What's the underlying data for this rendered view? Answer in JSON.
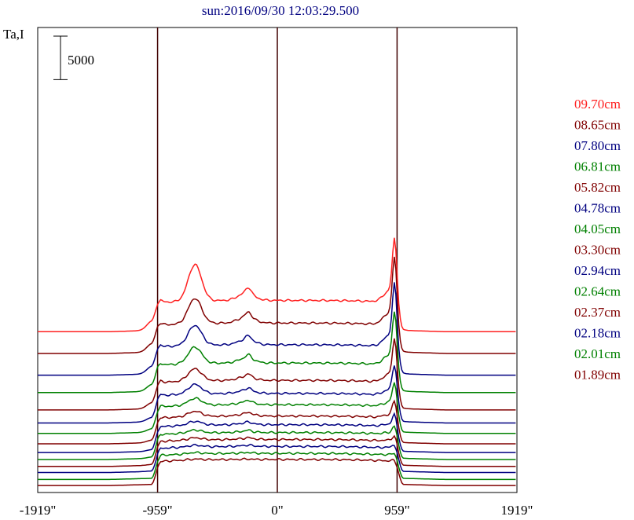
{
  "chart_data": {
    "type": "line",
    "title": "sun:2016/09/30 12:03:29.500",
    "ylabel": "Ta,I",
    "xlabel": "",
    "scale_bar": {
      "label": "5000",
      "value": 5000
    },
    "x_ticks": [
      "-1919\"",
      "-959\"",
      "0\"",
      "959\"",
      "1919\""
    ],
    "x_tick_values": [
      -1919,
      -959,
      0,
      959,
      1919
    ],
    "xlim": [
      -1919,
      1919
    ],
    "ylim": [
      -500,
      53000
    ],
    "grid": false,
    "legend_position": "right",
    "vertical_markers": [
      -959,
      0,
      959
    ],
    "series": [
      {
        "name": "09.70cm",
        "color": "#ff2020",
        "baseline": 18000,
        "disk": 3600,
        "bump_w": 4200,
        "bump_c": 1400,
        "limb_e": 6600,
        "limb_w": 1100
      },
      {
        "name": "08.65cm",
        "color": "#800000",
        "baseline": 15500,
        "disk": 3500,
        "bump_w": 2900,
        "bump_c": 1200,
        "limb_e": 7000,
        "limb_w": 1000
      },
      {
        "name": "07.80cm",
        "color": "#000080",
        "baseline": 13000,
        "disk": 3500,
        "bump_w": 2300,
        "bump_c": 1000,
        "limb_e": 6500,
        "limb_w": 900
      },
      {
        "name": "06.81cm",
        "color": "#008000",
        "baseline": 11000,
        "disk": 3400,
        "bump_w": 1900,
        "bump_c": 900,
        "limb_e": 5500,
        "limb_w": 800
      },
      {
        "name": "05.82cm",
        "color": "#800000",
        "baseline": 9000,
        "disk": 3400,
        "bump_w": 1400,
        "bump_c": 700,
        "limb_e": 4500,
        "limb_w": 700
      },
      {
        "name": "04.78cm",
        "color": "#000080",
        "baseline": 7500,
        "disk": 3400,
        "bump_w": 1100,
        "bump_c": 600,
        "limb_e": 3200,
        "limb_w": 500
      },
      {
        "name": "04.05cm",
        "color": "#008000",
        "baseline": 6300,
        "disk": 3300,
        "bump_w": 800,
        "bump_c": 500,
        "limb_e": 2500,
        "limb_w": 400
      },
      {
        "name": "03.30cm",
        "color": "#800000",
        "baseline": 5100,
        "disk": 3200,
        "bump_w": 600,
        "bump_c": 400,
        "limb_e": 1800,
        "limb_w": 300
      },
      {
        "name": "02.94cm",
        "color": "#000080",
        "baseline": 4100,
        "disk": 3200,
        "bump_w": 450,
        "bump_c": 300,
        "limb_e": 1300,
        "limb_w": 200
      },
      {
        "name": "02.64cm",
        "color": "#008000",
        "baseline": 3300,
        "disk": 3100,
        "bump_w": 350,
        "bump_c": 250,
        "limb_e": 900,
        "limb_w": 150
      },
      {
        "name": "02.37cm",
        "color": "#800000",
        "baseline": 2500,
        "disk": 3100,
        "bump_w": 250,
        "bump_c": 200,
        "limb_e": 600,
        "limb_w": 100
      },
      {
        "name": "02.18cm",
        "color": "#000080",
        "baseline": 1800,
        "disk": 3000,
        "bump_w": 200,
        "bump_c": 150,
        "limb_e": 400,
        "limb_w": 50
      },
      {
        "name": "02.01cm",
        "color": "#008000",
        "baseline": 1000,
        "disk": 3000,
        "bump_w": 150,
        "bump_c": 100,
        "limb_e": 250,
        "limb_w": 0
      },
      {
        "name": "01.89cm",
        "color": "#800000",
        "baseline": 300,
        "disk": 3000,
        "bump_w": 100,
        "bump_c": 50,
        "limb_e": 150,
        "limb_w": 0
      }
    ]
  }
}
